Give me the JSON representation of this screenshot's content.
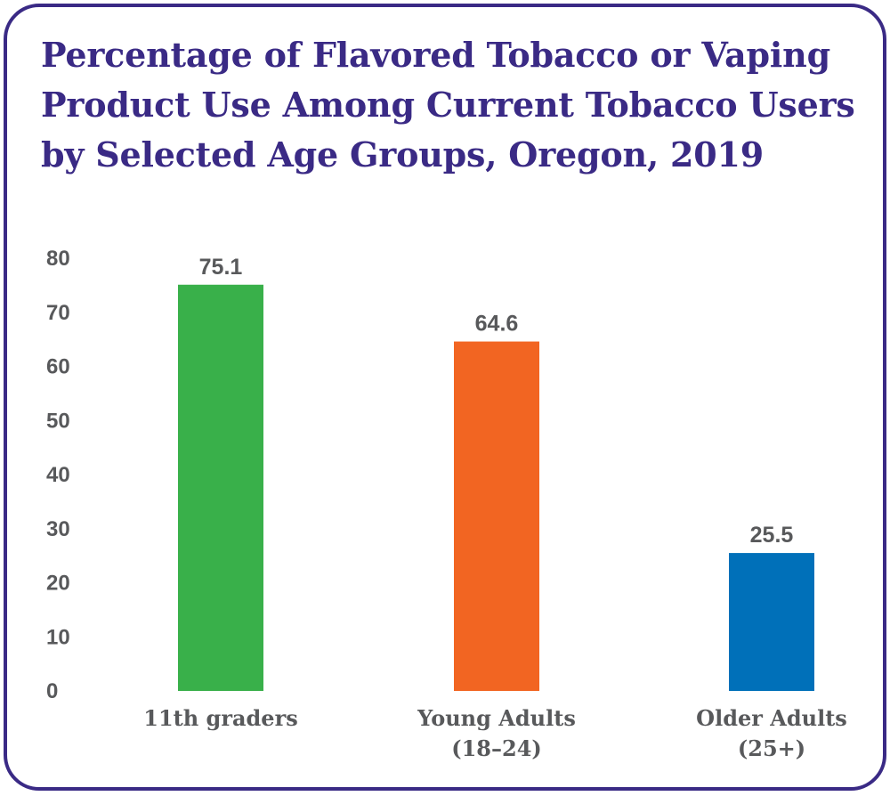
{
  "title": "Percentage of Flavored Tobacco or Vaping Product Use Among Current Tobacco Users by Selected Age Groups, Oregon, 2019",
  "chart_data": {
    "type": "bar",
    "title": "Percentage of Flavored Tobacco or Vaping Product Use Among Current Tobacco Users by Selected Age Groups, Oregon, 2019",
    "categories": [
      [
        "11th graders"
      ],
      [
        "Young Adults",
        "(18–24)"
      ],
      [
        "Older Adults",
        "(25+)"
      ]
    ],
    "values": [
      75.1,
      64.6,
      25.5
    ],
    "value_labels": [
      "75.1",
      "64.6",
      "25.5"
    ],
    "colors": [
      "#39b04a",
      "#f26522",
      "#0070b9"
    ],
    "xlabel": "",
    "ylabel": "",
    "ylim": [
      0,
      80
    ],
    "yticks": [
      0,
      10,
      20,
      30,
      40,
      50,
      60,
      70,
      80
    ],
    "grid": false,
    "legend": "none"
  }
}
